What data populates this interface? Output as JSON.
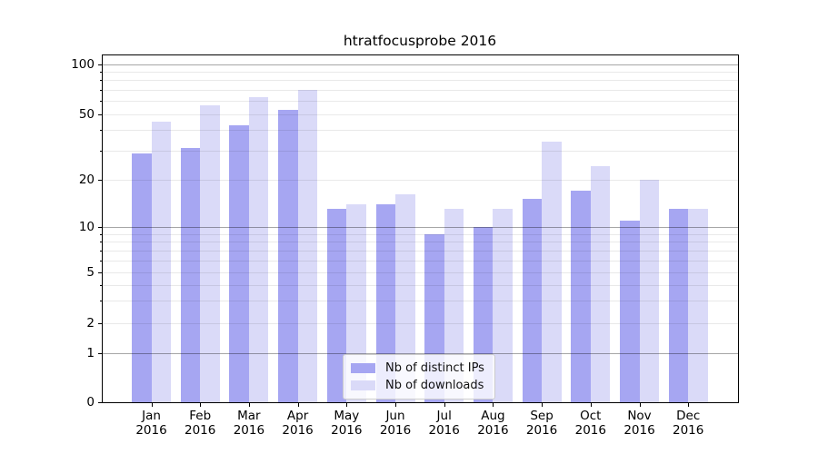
{
  "title": "htratfocusprobe 2016",
  "chart_data": {
    "type": "bar",
    "title": "htratfocusprobe 2016",
    "categories": [
      "Jan",
      "Feb",
      "Mar",
      "Apr",
      "May",
      "Jun",
      "Jul",
      "Aug",
      "Sep",
      "Oct",
      "Nov",
      "Dec"
    ],
    "x_tick_second_line": "2016",
    "series": [
      {
        "name": "Nb of distinct IPs",
        "color": "#a6a6f2",
        "values": [
          29,
          31,
          43,
          53,
          13,
          14,
          9,
          10,
          15,
          17,
          11,
          13
        ]
      },
      {
        "name": "Nb of downloads",
        "color": "#dadaf8",
        "values": [
          45,
          57,
          63,
          70,
          14,
          16,
          13,
          13,
          34,
          24,
          20,
          13
        ]
      }
    ],
    "yscale": "log",
    "y_tick_labels": [
      "100",
      "50",
      "20",
      "10",
      "5",
      "2",
      "1",
      "0"
    ],
    "y_tick_values": [
      100,
      50,
      20,
      10,
      5,
      2,
      1,
      0
    ],
    "ylim": [
      0,
      113
    ],
    "grid": true,
    "legend_position": "lower center",
    "axis_color": "#000000",
    "background_color": "#ffffff"
  }
}
